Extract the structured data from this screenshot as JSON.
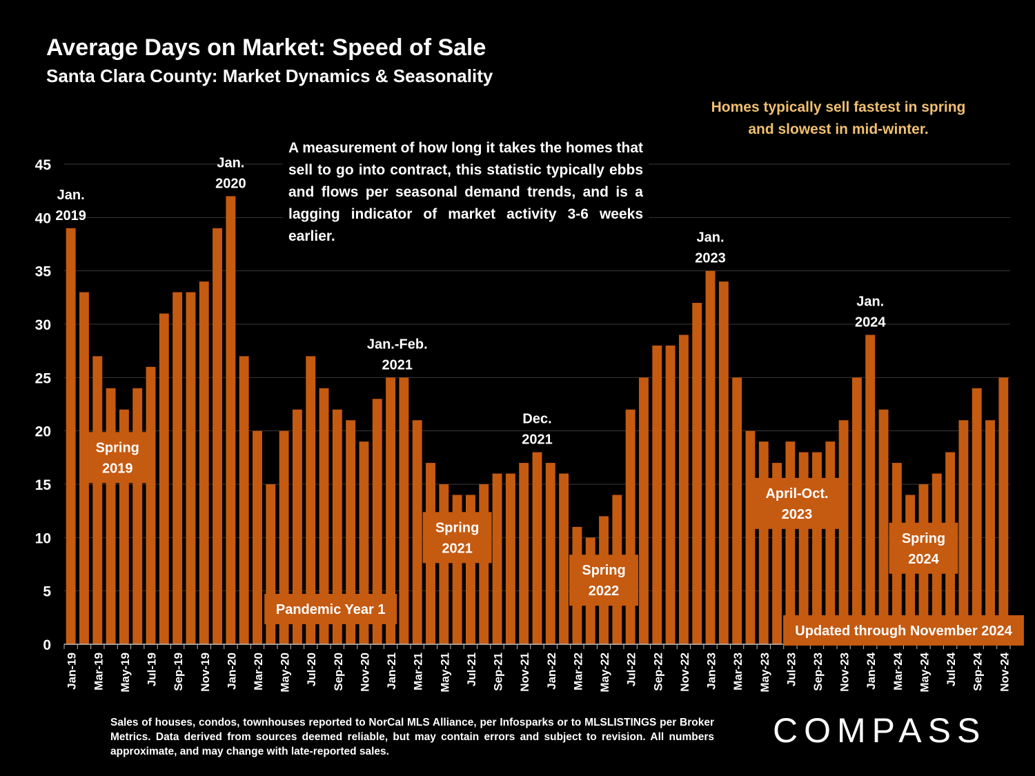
{
  "title": "Average Days on Market: Speed of Sale",
  "subtitle": "Santa Clara County: Market Dynamics & Seasonality",
  "note": "Homes typically sell fastest in spring and slowest in mid-winter.",
  "description": "A measurement of how long it takes the homes that sell to go into contract, this statistic typically ebbs and flows per seasonal demand trends, and is a lagging indicator of market activity 3-6 weeks earlier.",
  "source": "Sales of houses, condos, townhouses reported to NorCal MLS Alliance, per Infosparks or to MLSLISTINGS per Broker Metrics. Data derived from sources deemed reliable, but may contain errors and subject to revision. All numbers approximate, and may change with late-reported sales.",
  "brand": "COMPASS",
  "colors": {
    "bar": "#c55a11",
    "background": "#000000",
    "note": "#f0c070",
    "grid": "#3a3a3a"
  },
  "chart_data": {
    "type": "bar",
    "ylim": [
      0,
      45
    ],
    "yticks": [
      0,
      5,
      10,
      15,
      20,
      25,
      30,
      35,
      40,
      45
    ],
    "grid": true,
    "categories": [
      "Jan-19",
      "Feb-19",
      "Mar-19",
      "Apr-19",
      "May-19",
      "Jun-19",
      "Jul-19",
      "Aug-19",
      "Sep-19",
      "Oct-19",
      "Nov-19",
      "Dec-19",
      "Jan-20",
      "Feb-20",
      "Mar-20",
      "Apr-20",
      "May-20",
      "Jun-20",
      "Jul-20",
      "Aug-20",
      "Sep-20",
      "Oct-20",
      "Nov-20",
      "Dec-20",
      "Jan-21",
      "Feb-21",
      "Mar-21",
      "Apr-21",
      "May-21",
      "Jun-21",
      "Jul-21",
      "Aug-21",
      "Sep-21",
      "Oct-21",
      "Nov-21",
      "Dec-21",
      "Jan-22",
      "Feb-22",
      "Mar-22",
      "Apr-22",
      "May-22",
      "Jun-22",
      "Jul-22",
      "Aug-22",
      "Sep-22",
      "Oct-22",
      "Nov-22",
      "Dec-22",
      "Jan-23",
      "Feb-23",
      "Mar-23",
      "Apr-23",
      "May-23",
      "Jun-23",
      "Jul-23",
      "Aug-23",
      "Sep-23",
      "Oct-23",
      "Nov-23",
      "Dec-23",
      "Jan-24",
      "Feb-24",
      "Mar-24",
      "Apr-24",
      "May-24",
      "Jun-24",
      "Jul-24",
      "Aug-24",
      "Sep-24",
      "Oct-24",
      "Nov-24"
    ],
    "tick_labels": [
      "Jan-19",
      "Mar-19",
      "May-19",
      "Jul-19",
      "Sep-19",
      "Nov-19",
      "Jan-20",
      "Mar-20",
      "May-20",
      "Jul-20",
      "Sep-20",
      "Nov-20",
      "Jan-21",
      "Mar-21",
      "May-21",
      "Jul-21",
      "Sep-21",
      "Nov-21",
      "Jan-22",
      "Mar-22",
      "May-22",
      "Jul-22",
      "Sep-22",
      "Nov-22",
      "Jan-23",
      "Mar-23",
      "May-23",
      "Jul-23",
      "Sep-23",
      "Nov-23",
      "Jan-24",
      "Mar-24",
      "May-24",
      "Jul-24",
      "Sep-24",
      "Nov-24"
    ],
    "values": [
      39,
      33,
      27,
      24,
      22,
      24,
      26,
      31,
      33,
      33,
      34,
      39,
      42,
      27,
      20,
      15,
      20,
      22,
      27,
      24,
      22,
      21,
      19,
      23,
      25,
      25,
      21,
      17,
      15,
      14,
      14,
      15,
      16,
      16,
      17,
      18,
      17,
      16,
      11,
      10,
      12,
      14,
      22,
      25,
      28,
      28,
      29,
      32,
      35,
      34,
      25,
      20,
      19,
      17,
      19,
      18,
      18,
      19,
      21,
      25,
      29,
      22,
      17,
      14,
      15,
      16,
      18,
      21,
      24,
      21,
      25
    ],
    "peak_labels": [
      {
        "text": [
          "Jan.",
          "2019"
        ],
        "index": 0
      },
      {
        "text": [
          "Jan.",
          "2020"
        ],
        "index": 12
      },
      {
        "text": [
          "Jan.-Feb.",
          "2021"
        ],
        "index": 24.5
      },
      {
        "text": [
          "Dec.",
          "2021"
        ],
        "index": 35
      },
      {
        "text": [
          "Jan.",
          "2023"
        ],
        "index": 48
      },
      {
        "text": [
          "Jan.",
          "2024"
        ],
        "index": 60
      }
    ],
    "box_labels": [
      {
        "text": [
          "Spring",
          "2019"
        ],
        "center": 3.5,
        "y": 17.5,
        "lines": 2
      },
      {
        "text": [
          "Pandemic Year 1"
        ],
        "center": 19.5,
        "y": 3.3,
        "lines": 1
      },
      {
        "text": [
          "Spring",
          "2021"
        ],
        "center": 29.0,
        "y": 10.0,
        "lines": 2
      },
      {
        "text": [
          "Spring",
          "2022"
        ],
        "center": 40.0,
        "y": 6.0,
        "lines": 2
      },
      {
        "text": [
          "April-Oct.",
          "2023"
        ],
        "center": 54.5,
        "y": 13.2,
        "lines": 2
      },
      {
        "text": [
          "Spring",
          "2024"
        ],
        "center": 64.0,
        "y": 9.0,
        "lines": 2
      },
      {
        "text": [
          "Updated through November 2024"
        ],
        "center": 62.5,
        "y": 1.3,
        "lines": 1
      }
    ]
  }
}
